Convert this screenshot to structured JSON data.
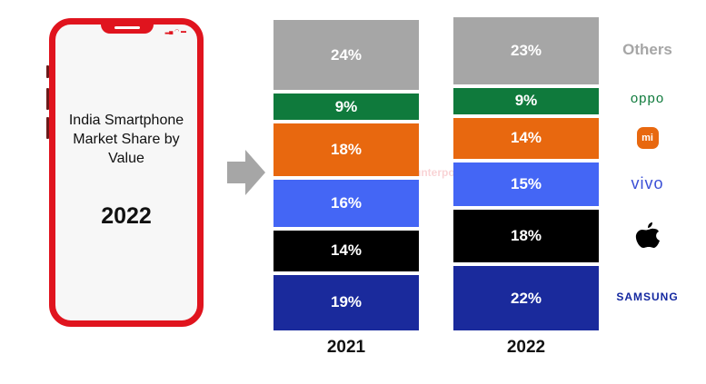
{
  "phone": {
    "title": "India Smartphone Market Share by Value",
    "year": "2022"
  },
  "watermark": "Counterpoint",
  "chart_data": {
    "type": "bar",
    "stacked": true,
    "unit": "%",
    "categories": [
      "2021",
      "2022"
    ],
    "series": [
      {
        "name": "SAMSUNG",
        "values": [
          19,
          22
        ],
        "color": "#1a2a9c",
        "labels": [
          "19%",
          "22%"
        ]
      },
      {
        "name": "Apple",
        "values": [
          14,
          18
        ],
        "color": "#000000",
        "labels": [
          "14%",
          "18%"
        ]
      },
      {
        "name": "vivo",
        "values": [
          16,
          15
        ],
        "color": "#4466f5",
        "labels": [
          "16%",
          "15%"
        ]
      },
      {
        "name": "Xiaomi",
        "values": [
          18,
          14
        ],
        "color": "#e8680f",
        "labels": [
          "18%",
          "14%"
        ]
      },
      {
        "name": "oppo",
        "values": [
          9,
          9
        ],
        "color": "#0f7a3c",
        "labels": [
          "9%",
          "9%"
        ]
      },
      {
        "name": "Others",
        "values": [
          24,
          23
        ],
        "color": "#a6a6a6",
        "labels": [
          "24%",
          "23%"
        ]
      }
    ],
    "legend_placement": "right",
    "grid": false
  }
}
